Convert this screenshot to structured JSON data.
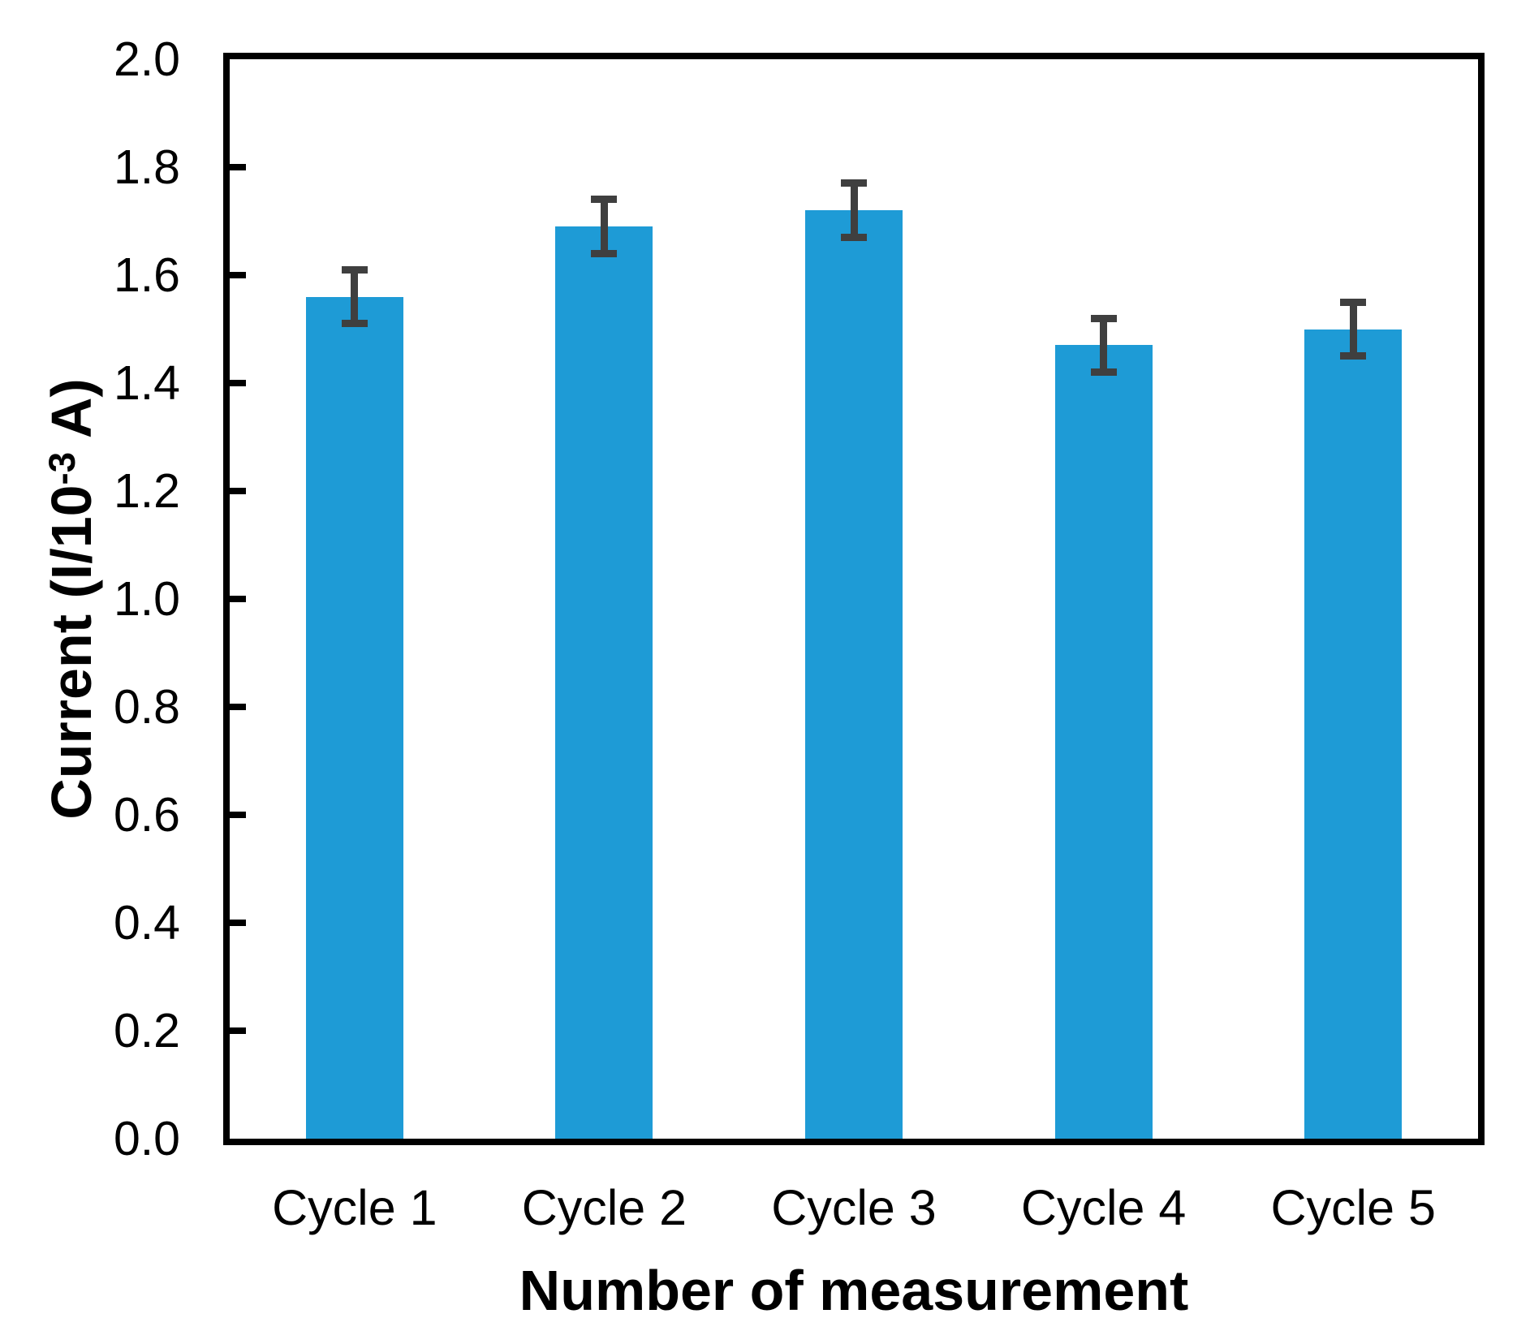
{
  "chart_data": {
    "type": "bar",
    "title": "",
    "categories": [
      "Cycle 1",
      "Cycle 2",
      "Cycle 3",
      "Cycle 4",
      "Cycle 5"
    ],
    "values": [
      1.56,
      1.69,
      1.72,
      1.47,
      1.5
    ],
    "error_bars": [
      0.05,
      0.05,
      0.05,
      0.05,
      0.05
    ],
    "xlabel": "Number of measurement",
    "ylabel": "Current (I/10⁻³ A)",
    "ylabel_parts": {
      "prefix": "Current (I/10",
      "superscript": "-3",
      "suffix": " A)"
    },
    "ylim": [
      0.0,
      2.0
    ],
    "ytick_step": 0.2,
    "ytick_labels": [
      "0.0",
      "0.2",
      "0.4",
      "0.6",
      "0.8",
      "1.0",
      "1.2",
      "1.4",
      "1.6",
      "1.8",
      "2.0"
    ],
    "grid": false,
    "legend": "none",
    "layout_hints": {
      "error_bar_caps": "both-ends",
      "ticks": "inside-left-axis",
      "plot_frame": "full-box"
    },
    "colors": {
      "bar_fill": "#1E9BD6",
      "error_bar": "#3F3F3F",
      "axis": "#000000",
      "text": "#000000",
      "background": "#FFFFFF"
    }
  }
}
